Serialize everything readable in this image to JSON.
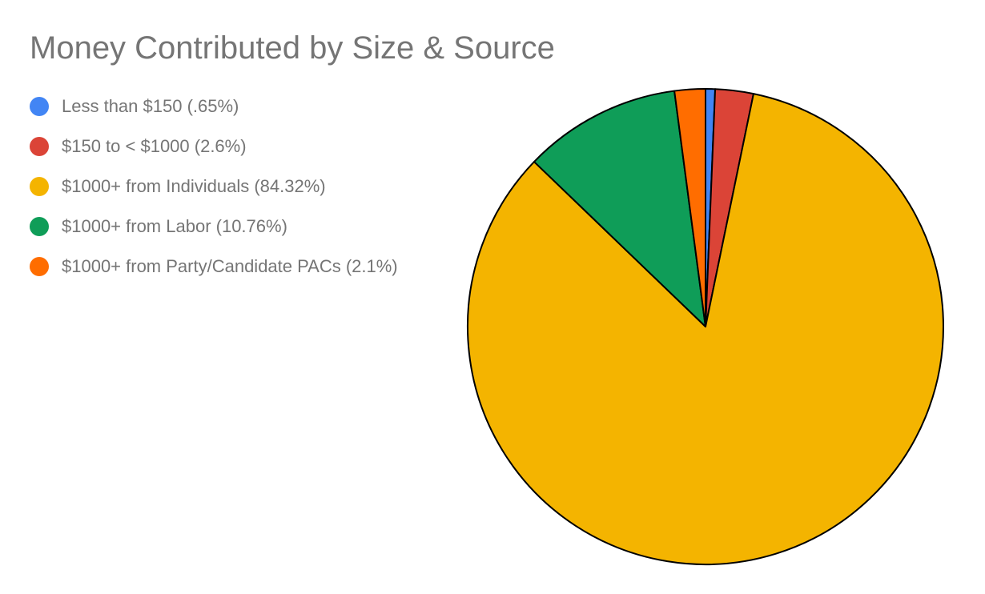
{
  "chart_data": {
    "type": "pie",
    "title": "Money Contributed by Size & Source",
    "legend_position": "left",
    "slices": [
      {
        "label": "Less than $150 (.65%)",
        "value": 0.65,
        "color": "#4285F4"
      },
      {
        "label": "$150 to < $1000 (2.6%)",
        "value": 2.6,
        "color": "#DB4437"
      },
      {
        "label": "$1000+ from Individuals (84.32%)",
        "value": 84.32,
        "color": "#F4B400"
      },
      {
        "label": "$1000+ from Labor (10.76%)",
        "value": 10.76,
        "color": "#0F9D58"
      },
      {
        "label": "$1000+ from Party/Candidate PACs (2.1%)",
        "value": 2.1,
        "color": "#FF6D00"
      }
    ],
    "slice_border_color": "#000000"
  }
}
